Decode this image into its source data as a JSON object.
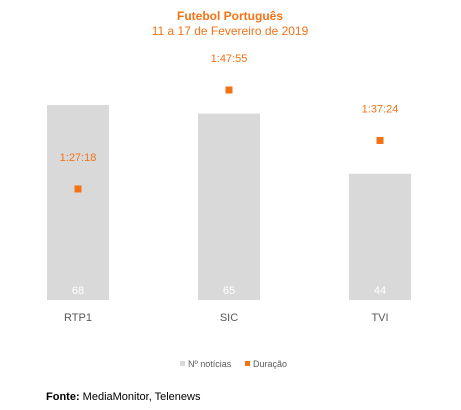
{
  "chart_data": {
    "type": "bar",
    "title": "Futebol Português",
    "subtitle": "11 a 17 de Fevereiro de 2019",
    "categories": [
      "RTP1",
      "SIC",
      "TVI"
    ],
    "series": [
      {
        "name": "Nº notícias",
        "type": "bar",
        "color": "#d9d9d9",
        "values": [
          68,
          65,
          44
        ]
      },
      {
        "name": "Duração",
        "type": "scatter",
        "color": "#f47216",
        "values": [
          "1:27:18",
          "1:47:55",
          "1:37:24"
        ]
      }
    ],
    "ylim_bars": [
      0,
      68
    ],
    "ylim_duration": [
      "1:00:00",
      "1:50:00"
    ],
    "grid": false,
    "legend_position": "bottom"
  },
  "colors": {
    "accent": "#f47216",
    "bar": "#d9d9d9",
    "axis_text": "#595959"
  },
  "source": {
    "label": "Fonte:",
    "text": " MediaMonitor, Telenews"
  }
}
